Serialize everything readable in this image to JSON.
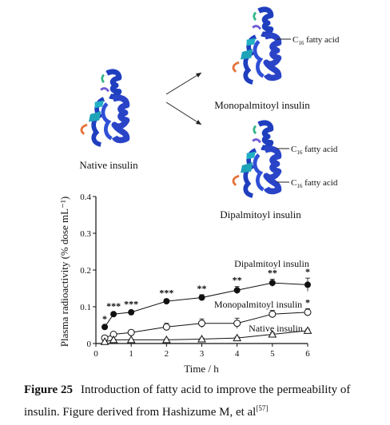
{
  "schematic": {
    "native_label": "Native insulin",
    "mono_label": "Monopalmitoyl insulin",
    "di_label": "Dipalmitoyl insulin",
    "fatty_acid_label": "fatty acid",
    "fatty_acid_prefix": "C",
    "fatty_acid_sub": "16"
  },
  "chart_data": {
    "type": "line",
    "xlabel": "Time / h",
    "ylabel": "Plasma radioactivity (% dose mL⁻¹)",
    "xlim": [
      0,
      6
    ],
    "ylim": [
      0,
      0.4
    ],
    "xticks": [
      "0",
      "1",
      "2",
      "3",
      "4",
      "5",
      "6"
    ],
    "yticks": [
      "0",
      "0.1",
      "0.2",
      "0.3",
      "0.4"
    ],
    "series": [
      {
        "name": "Dipalmitoyl insulin",
        "marker": "filled-circle",
        "x": [
          0.25,
          0.5,
          1,
          2,
          3,
          4,
          5,
          6
        ],
        "y": [
          0.045,
          0.08,
          0.085,
          0.115,
          0.125,
          0.145,
          0.165,
          0.16
        ],
        "err": [
          0.005,
          0.005,
          0.005,
          0.006,
          0.008,
          0.01,
          0.01,
          0.018
        ],
        "sig": [
          "*",
          "***",
          "***",
          "***",
          "**",
          "**",
          "**",
          "*"
        ]
      },
      {
        "name": "Monopalmitoyl insulin",
        "marker": "open-circle",
        "x": [
          0.25,
          0.5,
          1,
          2,
          3,
          4,
          5,
          6
        ],
        "y": [
          0.015,
          0.025,
          0.03,
          0.045,
          0.055,
          0.055,
          0.08,
          0.085
        ],
        "err": [
          0.004,
          0.005,
          0.006,
          0.01,
          0.012,
          0.014,
          0.01,
          0.01
        ],
        "sig": [
          "",
          "",
          "",
          "",
          "",
          "",
          "",
          "*"
        ]
      },
      {
        "name": "Native insulin",
        "marker": "open-triangle",
        "x": [
          0.25,
          0.5,
          1,
          2,
          3,
          4,
          5,
          6
        ],
        "y": [
          0.005,
          0.01,
          0.01,
          0.01,
          0.012,
          0.015,
          0.025,
          0.035
        ],
        "err": [
          0.002,
          0.002,
          0.002,
          0.003,
          0.003,
          0.003,
          0.004,
          0.004
        ],
        "sig": [
          "",
          "",
          "",
          "",
          "",
          "",
          "",
          ""
        ]
      }
    ]
  },
  "caption": {
    "figure_number": "Figure 25",
    "text": "Introduction of fatty acid to improve the permeability of insulin. Figure derived from Hashizume M, et al",
    "ref": "[57]"
  }
}
